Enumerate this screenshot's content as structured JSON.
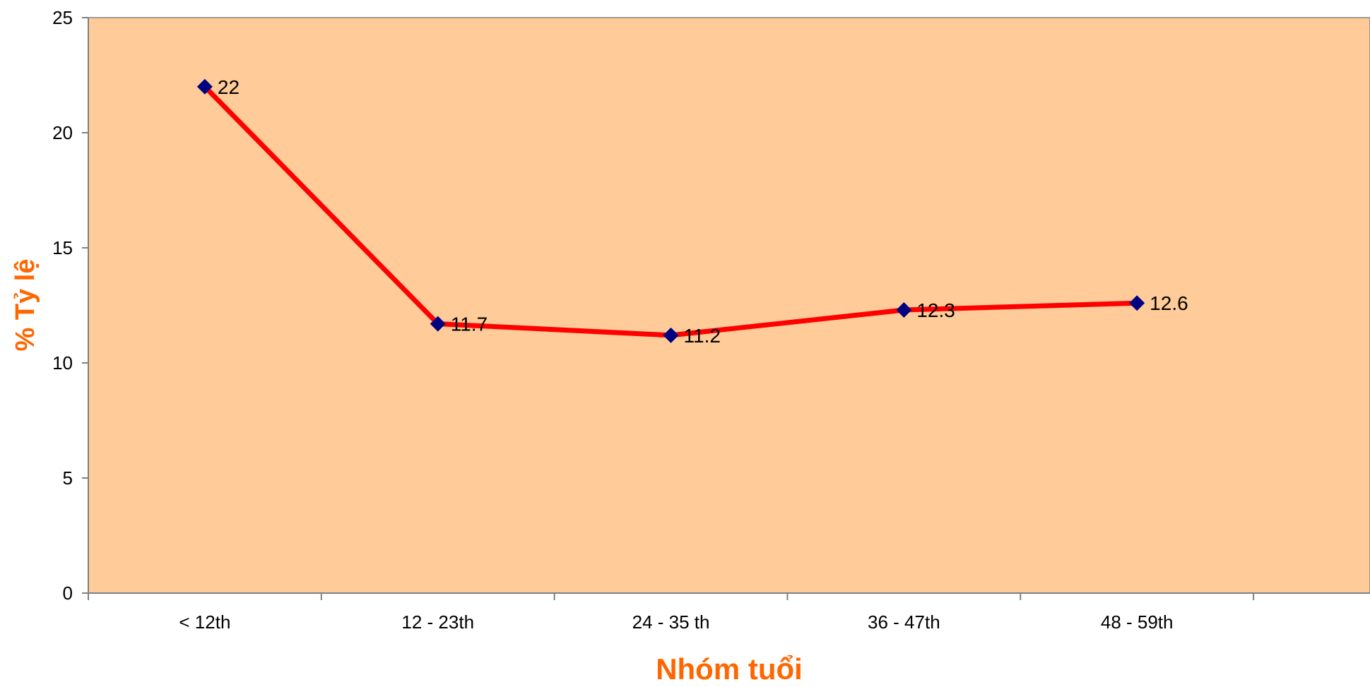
{
  "chart_data": {
    "type": "line",
    "title": "",
    "xlabel": "Nhóm tuổi",
    "ylabel": "% Tỷ lệ",
    "categories": [
      "< 12th",
      "12 - 23th",
      "24 - 35 th",
      "36 - 47th",
      "48 - 59th"
    ],
    "series": [
      {
        "values": [
          22,
          11.7,
          11.2,
          12.3,
          12.6
        ],
        "line_color": "#ff0000",
        "marker_color": "#000080",
        "marker": "diamond"
      }
    ],
    "data_labels": [
      "22",
      "11.7",
      "11.2",
      "12.3",
      "12.6"
    ],
    "ylim": [
      0,
      25
    ],
    "yticks": [
      0,
      5,
      10,
      15,
      20,
      25
    ],
    "ytick_labels": [
      "0",
      "5",
      "10",
      "15",
      "20",
      "25"
    ],
    "grid": false,
    "legend": "none",
    "colors": {
      "plot_background": "#ffcc99",
      "axis_title": "#ff6600",
      "axis_line": "#808080"
    }
  }
}
